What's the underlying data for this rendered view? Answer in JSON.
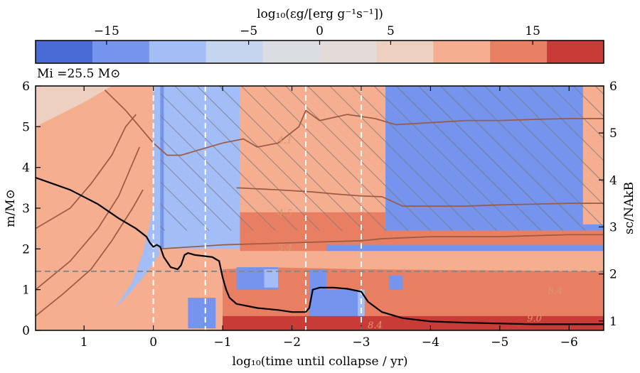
{
  "chart_data": {
    "type": "heatmap",
    "colorbar": {
      "label": "log₁₀(εg/[erg g⁻¹s⁻¹])",
      "range": [
        -20,
        20
      ],
      "colors": [
        "#4a6bd6",
        "#7494ee",
        "#a3bdf7",
        "#c6d5ef",
        "#dadde2",
        "#e2dbd7",
        "#edd0bf",
        "#f5ae90",
        "#e97f62",
        "#c93b37"
      ],
      "ticks": [
        {
          "value": -15,
          "label": "−15"
        },
        {
          "value": -5,
          "label": "−5"
        },
        {
          "value": 0,
          "label": "0"
        },
        {
          "value": 5,
          "label": "5"
        },
        {
          "value": 15,
          "label": "15"
        }
      ]
    },
    "annotation": "Mi =25.5 M⊙",
    "xlabel": "log₁₀(time until collapse / yr)",
    "ylabel_left": "m/M⊙",
    "ylabel_right": "sc/NAkB",
    "xlim": [
      1.7,
      -6.5
    ],
    "ylim_left": [
      0,
      6
    ],
    "ylim_right": [
      0.8,
      6.0
    ],
    "x_ticks": [
      {
        "value": 1,
        "label": "1"
      },
      {
        "value": 0,
        "label": "0"
      },
      {
        "value": -1,
        "label": "−1"
      },
      {
        "value": -2,
        "label": "−2"
      },
      {
        "value": -3,
        "label": "−3"
      },
      {
        "value": -4,
        "label": "−4"
      },
      {
        "value": -5,
        "label": "−5"
      },
      {
        "value": -6,
        "label": "−6"
      }
    ],
    "y_ticks_left": [
      0,
      1,
      2,
      3,
      4,
      5,
      6
    ],
    "y_ticks_right": [
      1,
      2,
      3,
      4,
      5,
      6
    ],
    "vertical_dashed_lines": [
      0.0,
      -0.75,
      -2.2,
      -3.0
    ],
    "horizontal_dashed_line": 1.45,
    "hatched_regions": [
      {
        "x": [
          -0.1,
          -6.5
        ],
        "m": [
          2.45,
          6.0
        ]
      }
    ],
    "contour_labels": [
      {
        "text": "4.1",
        "x": -1.9,
        "m": 4.6
      },
      {
        "text": "4.5",
        "x": -1.9,
        "m": 2.8
      },
      {
        "text": "5.4",
        "x": -1.9,
        "m": 1.95
      },
      {
        "text": "8.4",
        "x": -5.8,
        "m": 0.9
      },
      {
        "text": "9.0",
        "x": -5.5,
        "m": 0.22
      },
      {
        "text": "8.4",
        "x": -3.2,
        "m": 0.05
      }
    ],
    "central_entropy": {
      "x": [
        1.7,
        1.2,
        0.8,
        0.5,
        0.25,
        0.1,
        0.05,
        0.0,
        -0.05,
        -0.1,
        -0.15,
        -0.25,
        -0.35,
        -0.4,
        -0.45,
        -0.5,
        -0.6,
        -0.85,
        -0.95,
        -1.0,
        -1.05,
        -1.1,
        -1.2,
        -1.5,
        -1.8,
        -2.0,
        -2.2,
        -2.25,
        -2.3,
        -2.4,
        -2.6,
        -2.8,
        -3.0,
        -3.1,
        -3.3,
        -3.6,
        -4.0,
        -4.5,
        -5.0,
        -5.5,
        -6.0,
        -6.5
      ],
      "m": [
        3.75,
        3.45,
        3.1,
        2.75,
        2.5,
        2.3,
        2.15,
        2.05,
        2.1,
        2.05,
        1.8,
        1.55,
        1.5,
        1.6,
        1.85,
        1.9,
        1.85,
        1.8,
        1.7,
        1.3,
        1.0,
        0.8,
        0.65,
        0.55,
        0.5,
        0.45,
        0.45,
        0.55,
        1.0,
        1.05,
        1.05,
        1.02,
        0.95,
        0.7,
        0.45,
        0.3,
        0.22,
        0.19,
        0.17,
        0.15,
        0.15,
        0.15
      ]
    },
    "mass_contours": [
      {
        "x": [
          1.7,
          1.3,
          0.9,
          0.6,
          0.3,
          0.2,
          0.15
        ],
        "m": [
          0.35,
          0.9,
          1.5,
          2.2,
          3.0,
          3.3,
          3.45
        ]
      },
      {
        "x": [
          1.7,
          1.2,
          0.8,
          0.5,
          0.3,
          0.2
        ],
        "m": [
          1.0,
          1.7,
          2.5,
          3.3,
          4.1,
          4.5
        ]
      },
      {
        "x": [
          1.7,
          1.2,
          0.9,
          0.6,
          0.4,
          0.25
        ],
        "m": [
          2.5,
          3.0,
          3.6,
          4.3,
          5.0,
          5.3
        ]
      },
      {
        "x": [
          0.7,
          0.4,
          0.2,
          0.0,
          -0.2,
          -0.4,
          -0.6,
          -1.0,
          -1.3,
          -1.5,
          -1.8,
          -2.1,
          -2.2,
          -2.4,
          -2.8,
          -3.2,
          -3.5,
          -4.0,
          -4.5,
          -5.0,
          -5.5,
          -6.0,
          -6.5
        ],
        "m": [
          5.9,
          5.4,
          5.0,
          4.6,
          4.3,
          4.3,
          4.4,
          4.6,
          4.7,
          4.5,
          4.6,
          5.0,
          5.4,
          5.15,
          5.3,
          5.2,
          5.05,
          5.1,
          5.15,
          5.15,
          5.18,
          5.2,
          5.2
        ]
      },
      {
        "x": [
          -1.2,
          -1.8,
          -2.3,
          -2.6,
          -3.0,
          -3.3,
          -3.6,
          -4.0,
          -4.5,
          -5.0,
          -5.5,
          -6.0,
          -6.5
        ],
        "m": [
          3.5,
          3.45,
          3.4,
          3.35,
          3.3,
          3.28,
          3.05,
          3.05,
          3.05,
          3.08,
          3.1,
          3.12,
          3.12
        ]
      },
      {
        "x": [
          -0.1,
          -1.0,
          -2.0,
          -3.0,
          -3.3,
          -4.0,
          -5.0,
          -6.0,
          -6.5
        ],
        "m": [
          2.0,
          2.1,
          2.15,
          2.2,
          2.25,
          2.3,
          2.3,
          2.35,
          2.35
        ]
      }
    ]
  }
}
